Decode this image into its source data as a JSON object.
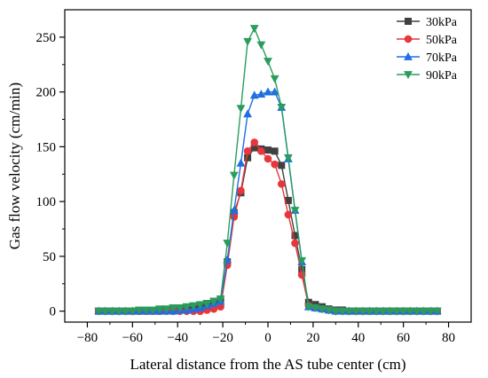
{
  "chart_data": {
    "type": "line",
    "title": "",
    "xlabel": "Lateral distance from the AS tube center (cm)",
    "ylabel": "Gas flow velocity (cm/min)",
    "xlim": [
      -90,
      90
    ],
    "ylim": [
      -10,
      275
    ],
    "xticks": [
      -80,
      -60,
      -40,
      -20,
      0,
      20,
      40,
      60,
      80
    ],
    "yticks": [
      0,
      50,
      100,
      150,
      200,
      250
    ],
    "grid": false,
    "legend_position": "top-right",
    "x": [
      -75,
      -72,
      -69,
      -66,
      -63,
      -60,
      -57,
      -54,
      -51,
      -48,
      -45,
      -42,
      -39,
      -36,
      -33,
      -30,
      -27,
      -24,
      -21,
      -18,
      -15,
      -12,
      -9,
      -6,
      -3,
      0,
      3,
      6,
      9,
      12,
      15,
      18,
      21,
      24,
      27,
      30,
      33,
      36,
      39,
      42,
      45,
      48,
      51,
      54,
      57,
      60,
      63,
      66,
      69,
      72,
      75
    ],
    "series": [
      {
        "name": "30kPa",
        "color": "#404040",
        "marker": "square",
        "values": [
          0,
          0,
          0,
          0,
          0,
          0,
          0,
          0,
          0,
          0,
          1,
          1,
          1,
          2,
          3,
          5,
          7,
          9,
          11,
          45,
          90,
          108,
          140,
          149,
          148,
          147,
          146,
          133,
          101,
          69,
          38,
          8,
          6,
          4,
          2,
          1,
          1,
          0,
          0,
          0,
          0,
          0,
          0,
          0,
          0,
          0,
          0,
          0,
          0,
          0,
          0
        ]
      },
      {
        "name": "50kPa",
        "color": "#e8363a",
        "marker": "circle",
        "values": [
          0,
          0,
          0,
          0,
          0,
          0,
          0,
          0,
          0,
          0,
          0,
          0,
          0,
          0,
          0,
          0,
          1,
          2,
          4,
          42,
          86,
          110,
          146,
          154,
          146,
          139,
          134,
          116,
          88,
          62,
          33,
          5,
          3,
          2,
          1,
          0,
          0,
          0,
          0,
          0,
          0,
          0,
          0,
          0,
          0,
          0,
          0,
          0,
          0,
          0,
          0
        ]
      },
      {
        "name": "70kPa",
        "color": "#1f6fe0",
        "marker": "triangle-up",
        "values": [
          0,
          0,
          0,
          0,
          0,
          0,
          0,
          0,
          0,
          0,
          0,
          0,
          1,
          1,
          2,
          3,
          5,
          7,
          9,
          47,
          92,
          135,
          180,
          197,
          198,
          200,
          200,
          186,
          139,
          92,
          45,
          4,
          3,
          2,
          1,
          0,
          0,
          0,
          0,
          0,
          0,
          0,
          0,
          0,
          0,
          0,
          0,
          0,
          0,
          0,
          0
        ]
      },
      {
        "name": "90kPa",
        "color": "#2a9d5c",
        "marker": "triangle-down",
        "values": [
          0,
          0,
          0,
          0,
          0,
          0,
          1,
          1,
          1,
          2,
          2,
          3,
          3,
          4,
          5,
          6,
          7,
          9,
          11,
          62,
          124,
          185,
          246,
          258,
          243,
          228,
          212,
          186,
          140,
          92,
          46,
          4,
          3,
          2,
          1,
          0,
          0,
          0,
          0,
          0,
          0,
          0,
          0,
          0,
          0,
          0,
          0,
          0,
          0,
          0,
          0
        ]
      }
    ]
  }
}
